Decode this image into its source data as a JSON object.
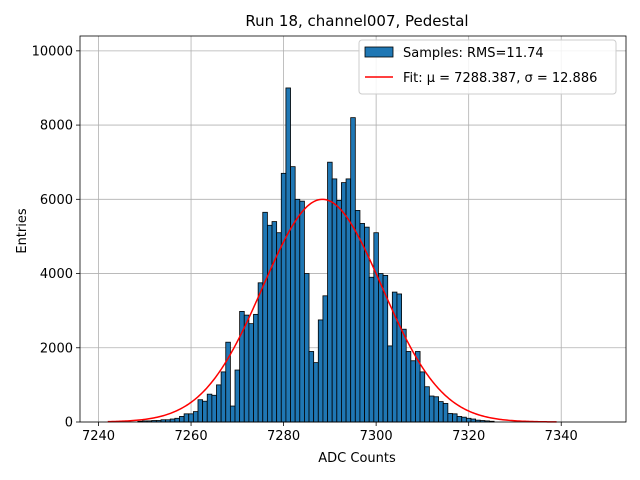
{
  "chart_data": {
    "type": "bar",
    "title": "Run 18, channel007, Pedestal",
    "xlabel": "ADC Counts",
    "ylabel": "Entries",
    "xlim": [
      7236,
      7354
    ],
    "ylim": [
      0,
      10400
    ],
    "xticks": [
      7240,
      7260,
      7280,
      7300,
      7320,
      7340
    ],
    "yticks": [
      0,
      2000,
      4000,
      6000,
      8000,
      10000
    ],
    "grid": true,
    "legend_position": "top-right",
    "histogram": {
      "name": "Samples: RMS=11.74",
      "color": "#1f77b4",
      "bin_width": 1,
      "bins": [
        [
          7249,
          20
        ],
        [
          7250,
          30
        ],
        [
          7251,
          30
        ],
        [
          7252,
          40
        ],
        [
          7253,
          40
        ],
        [
          7254,
          60
        ],
        [
          7255,
          60
        ],
        [
          7256,
          80
        ],
        [
          7257,
          100
        ],
        [
          7258,
          150
        ],
        [
          7259,
          220
        ],
        [
          7260,
          220
        ],
        [
          7261,
          280
        ],
        [
          7262,
          600
        ],
        [
          7263,
          560
        ],
        [
          7264,
          750
        ],
        [
          7265,
          720
        ],
        [
          7266,
          1000
        ],
        [
          7267,
          1350
        ],
        [
          7268,
          2150
        ],
        [
          7269,
          430
        ],
        [
          7270,
          1400
        ],
        [
          7271,
          2980
        ],
        [
          7272,
          2880
        ],
        [
          7273,
          2650
        ],
        [
          7274,
          2900
        ],
        [
          7275,
          3750
        ],
        [
          7276,
          5650
        ],
        [
          7277,
          5300
        ],
        [
          7278,
          5400
        ],
        [
          7279,
          5100
        ],
        [
          7280,
          6700
        ],
        [
          7281,
          9000
        ],
        [
          7282,
          6880
        ],
        [
          7283,
          6000
        ],
        [
          7284,
          5950
        ],
        [
          7285,
          4000
        ],
        [
          7286,
          1900
        ],
        [
          7287,
          1600
        ],
        [
          7288,
          2750
        ],
        [
          7289,
          3400
        ],
        [
          7290,
          7000
        ],
        [
          7291,
          6550
        ],
        [
          7292,
          5970
        ],
        [
          7293,
          6450
        ],
        [
          7294,
          6550
        ],
        [
          7295,
          8200
        ],
        [
          7296,
          5700
        ],
        [
          7297,
          5350
        ],
        [
          7298,
          5250
        ],
        [
          7299,
          3900
        ],
        [
          7300,
          5100
        ],
        [
          7301,
          4000
        ],
        [
          7302,
          3950
        ],
        [
          7303,
          2050
        ],
        [
          7304,
          3500
        ],
        [
          7305,
          3450
        ],
        [
          7306,
          2500
        ],
        [
          7307,
          1900
        ],
        [
          7308,
          1650
        ],
        [
          7309,
          1900
        ],
        [
          7310,
          1350
        ],
        [
          7311,
          950
        ],
        [
          7312,
          700
        ],
        [
          7313,
          680
        ],
        [
          7314,
          550
        ],
        [
          7315,
          500
        ],
        [
          7316,
          230
        ],
        [
          7317,
          220
        ],
        [
          7318,
          150
        ],
        [
          7319,
          130
        ],
        [
          7320,
          100
        ],
        [
          7321,
          80
        ],
        [
          7322,
          50
        ],
        [
          7323,
          40
        ],
        [
          7324,
          30
        ],
        [
          7325,
          20
        ]
      ]
    },
    "fit": {
      "name": "Fit: μ = 7288.387, σ = 12.886",
      "color": "#ff0000",
      "mu": 7288.387,
      "sigma": 12.886,
      "amplitude": 6000,
      "x_range": [
        7242,
        7339
      ]
    }
  }
}
